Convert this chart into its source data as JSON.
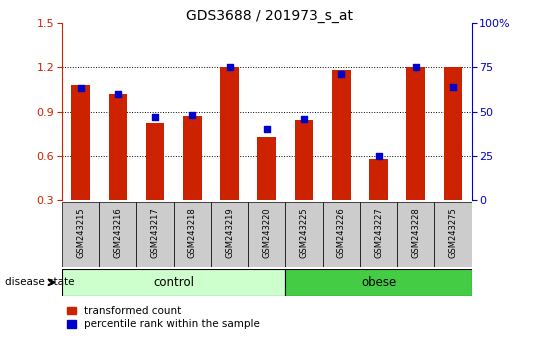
{
  "title": "GDS3688 / 201973_s_at",
  "samples": [
    "GSM243215",
    "GSM243216",
    "GSM243217",
    "GSM243218",
    "GSM243219",
    "GSM243220",
    "GSM243225",
    "GSM243226",
    "GSM243227",
    "GSM243228",
    "GSM243275"
  ],
  "red_values": [
    1.08,
    1.02,
    0.82,
    0.87,
    1.2,
    0.73,
    0.84,
    1.18,
    0.58,
    1.2,
    1.2
  ],
  "blue_percentiles": [
    63,
    60,
    47,
    48,
    75,
    40,
    46,
    71,
    25,
    75,
    64
  ],
  "ylim": [
    0.3,
    1.5
  ],
  "yticks": [
    0.3,
    0.6,
    0.9,
    1.2,
    1.5
  ],
  "y2lim": [
    0,
    100
  ],
  "y2ticks": [
    0,
    25,
    50,
    75,
    100
  ],
  "control_count": 6,
  "obese_count": 5,
  "bar_color": "#cc2200",
  "dot_color": "#0000cc",
  "control_color": "#ccffcc",
  "obese_color": "#44cc44",
  "label_bg": "#cccccc",
  "figsize": [
    5.39,
    3.54
  ],
  "dpi": 100
}
